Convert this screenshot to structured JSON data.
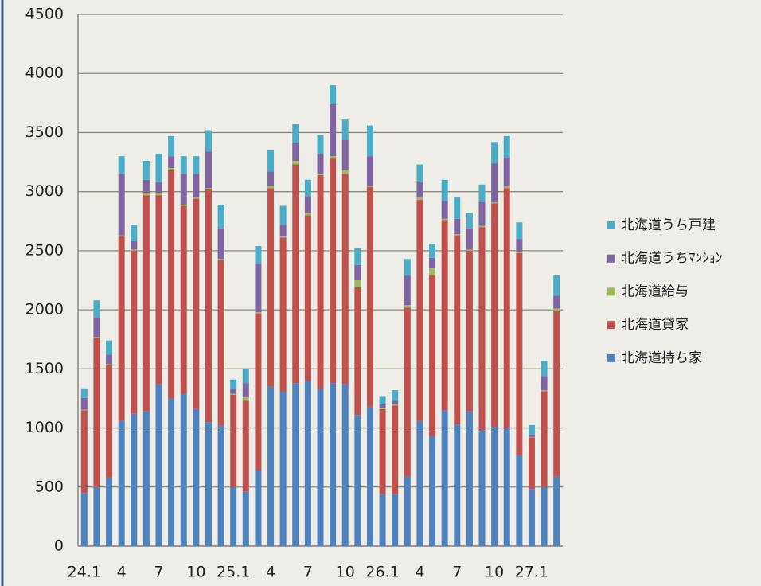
{
  "chart_data": {
    "type": "stacked_bar",
    "categories": [
      "24.1",
      null,
      null,
      "4",
      null,
      null,
      "7",
      null,
      null,
      "10",
      null,
      null,
      "25.1",
      null,
      null,
      "4",
      null,
      null,
      "7",
      null,
      null,
      "10",
      null,
      null,
      "26.1",
      null,
      null,
      "4",
      null,
      null,
      "7",
      null,
      null,
      "10",
      null,
      null,
      "27.1",
      null,
      null
    ],
    "series": [
      {
        "name": "北海道持ち家",
        "color": "#4f81bd",
        "values": [
          450,
          500,
          580,
          1060,
          1120,
          1140,
          1370,
          1250,
          1290,
          1160,
          1050,
          1020,
          500,
          460,
          640,
          1350,
          1310,
          1380,
          1400,
          1330,
          1380,
          1370,
          1110,
          1180,
          440,
          440,
          590,
          1060,
          930,
          1150,
          1030,
          1140,
          980,
          1010,
          1000,
          770,
          480,
          500,
          590
        ]
      },
      {
        "name": "北海道貸家",
        "color": "#c0504d",
        "values": [
          700,
          1260,
          950,
          1560,
          1380,
          1830,
          1600,
          1930,
          1590,
          1780,
          1970,
          1400,
          780,
          770,
          1330,
          1680,
          1300,
          1850,
          1400,
          1810,
          1900,
          1780,
          1080,
          1860,
          720,
          750,
          1430,
          1870,
          1360,
          1610,
          1600,
          1360,
          1720,
          1890,
          2030,
          1710,
          440,
          810,
          1400
        ]
      },
      {
        "name": "北海道給与",
        "color": "#9bbb59",
        "values": [
          5,
          10,
          10,
          10,
          10,
          20,
          20,
          20,
          10,
          10,
          10,
          10,
          10,
          30,
          10,
          20,
          10,
          30,
          20,
          10,
          20,
          30,
          60,
          10,
          10,
          10,
          20,
          20,
          60,
          10,
          10,
          10,
          10,
          10,
          20,
          10,
          5,
          10,
          20
        ]
      },
      {
        "name": "北海道うちﾏﾝｼｮﾝ",
        "color": "#8064a2",
        "values": [
          100,
          160,
          80,
          520,
          70,
          110,
          90,
          100,
          260,
          200,
          310,
          260,
          40,
          120,
          410,
          120,
          100,
          150,
          140,
          170,
          440,
          260,
          130,
          250,
          30,
          30,
          250,
          130,
          90,
          150,
          130,
          180,
          200,
          330,
          240,
          110,
          20,
          120,
          110
        ]
      },
      {
        "name": "北海道うち戸建",
        "color": "#4bacc6",
        "values": [
          80,
          150,
          120,
          150,
          140,
          160,
          240,
          170,
          150,
          150,
          180,
          200,
          80,
          120,
          150,
          180,
          160,
          160,
          140,
          160,
          160,
          170,
          140,
          260,
          70,
          90,
          140,
          150,
          120,
          180,
          180,
          130,
          150,
          180,
          180,
          140,
          80,
          130,
          170
        ]
      }
    ],
    "ylim": [
      0,
      4500
    ],
    "yticks": [
      0,
      500,
      1000,
      1500,
      2000,
      2500,
      3000,
      3500,
      4000,
      4500
    ],
    "grid": true,
    "legend": "right"
  }
}
